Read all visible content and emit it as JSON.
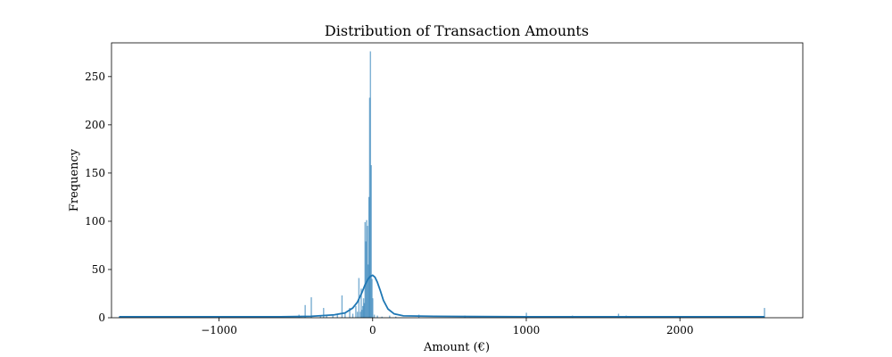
{
  "chart_data": {
    "type": "histogram",
    "title": "Distribution of Transaction Amounts",
    "xlabel": "Amount (€)",
    "ylabel": "Frequency",
    "xlim": [
      -1700,
      2800
    ],
    "ylim": [
      0,
      285
    ],
    "xticks": [
      -1000,
      0,
      1000,
      2000
    ],
    "xtick_labels": [
      "−1000",
      "0",
      "1000",
      "2000"
    ],
    "yticks": [
      0,
      50,
      100,
      150,
      200,
      250
    ],
    "grid": false,
    "bar_color": "#1f77b4",
    "kde_color": "#1f77b4",
    "bins": [
      {
        "x": -1650,
        "y": 1
      },
      {
        "x": -480,
        "y": 3
      },
      {
        "x": -440,
        "y": 13
      },
      {
        "x": -400,
        "y": 21
      },
      {
        "x": -340,
        "y": 2
      },
      {
        "x": -320,
        "y": 10
      },
      {
        "x": -300,
        "y": 3
      },
      {
        "x": -260,
        "y": 2
      },
      {
        "x": -230,
        "y": 4
      },
      {
        "x": -200,
        "y": 23
      },
      {
        "x": -180,
        "y": 5
      },
      {
        "x": -150,
        "y": 10
      },
      {
        "x": -130,
        "y": 4
      },
      {
        "x": -110,
        "y": 12
      },
      {
        "x": -100,
        "y": 6
      },
      {
        "x": -90,
        "y": 41
      },
      {
        "x": -80,
        "y": 6
      },
      {
        "x": -75,
        "y": 30
      },
      {
        "x": -70,
        "y": 8
      },
      {
        "x": -65,
        "y": 12
      },
      {
        "x": -60,
        "y": 20
      },
      {
        "x": -55,
        "y": 15
      },
      {
        "x": -50,
        "y": 99
      },
      {
        "x": -45,
        "y": 79
      },
      {
        "x": -40,
        "y": 101
      },
      {
        "x": -35,
        "y": 95
      },
      {
        "x": -30,
        "y": 55
      },
      {
        "x": -25,
        "y": 125
      },
      {
        "x": -20,
        "y": 228
      },
      {
        "x": -15,
        "y": 276
      },
      {
        "x": -10,
        "y": 158
      },
      {
        "x": -5,
        "y": 40
      },
      {
        "x": 0,
        "y": 20
      },
      {
        "x": 10,
        "y": 3
      },
      {
        "x": 30,
        "y": 2
      },
      {
        "x": 60,
        "y": 1
      },
      {
        "x": 110,
        "y": 2
      },
      {
        "x": 150,
        "y": 1
      },
      {
        "x": 300,
        "y": 3
      },
      {
        "x": 600,
        "y": 2
      },
      {
        "x": 1000,
        "y": 5
      },
      {
        "x": 1300,
        "y": 2
      },
      {
        "x": 1600,
        "y": 4
      },
      {
        "x": 1650,
        "y": 2
      },
      {
        "x": 2000,
        "y": 1
      },
      {
        "x": 2550,
        "y": 10
      }
    ],
    "kde": {
      "x": [
        -1650,
        -600,
        -400,
        -250,
        -180,
        -130,
        -100,
        -70,
        -50,
        -30,
        -15,
        0,
        15,
        30,
        50,
        70,
        100,
        140,
        200,
        400,
        1000,
        2000,
        2550
      ],
      "y": [
        1,
        1,
        1.5,
        3,
        5,
        10,
        16,
        26,
        34,
        40,
        43,
        44,
        42,
        37,
        28,
        18,
        9,
        4,
        2,
        1.5,
        1,
        1,
        1
      ]
    }
  }
}
